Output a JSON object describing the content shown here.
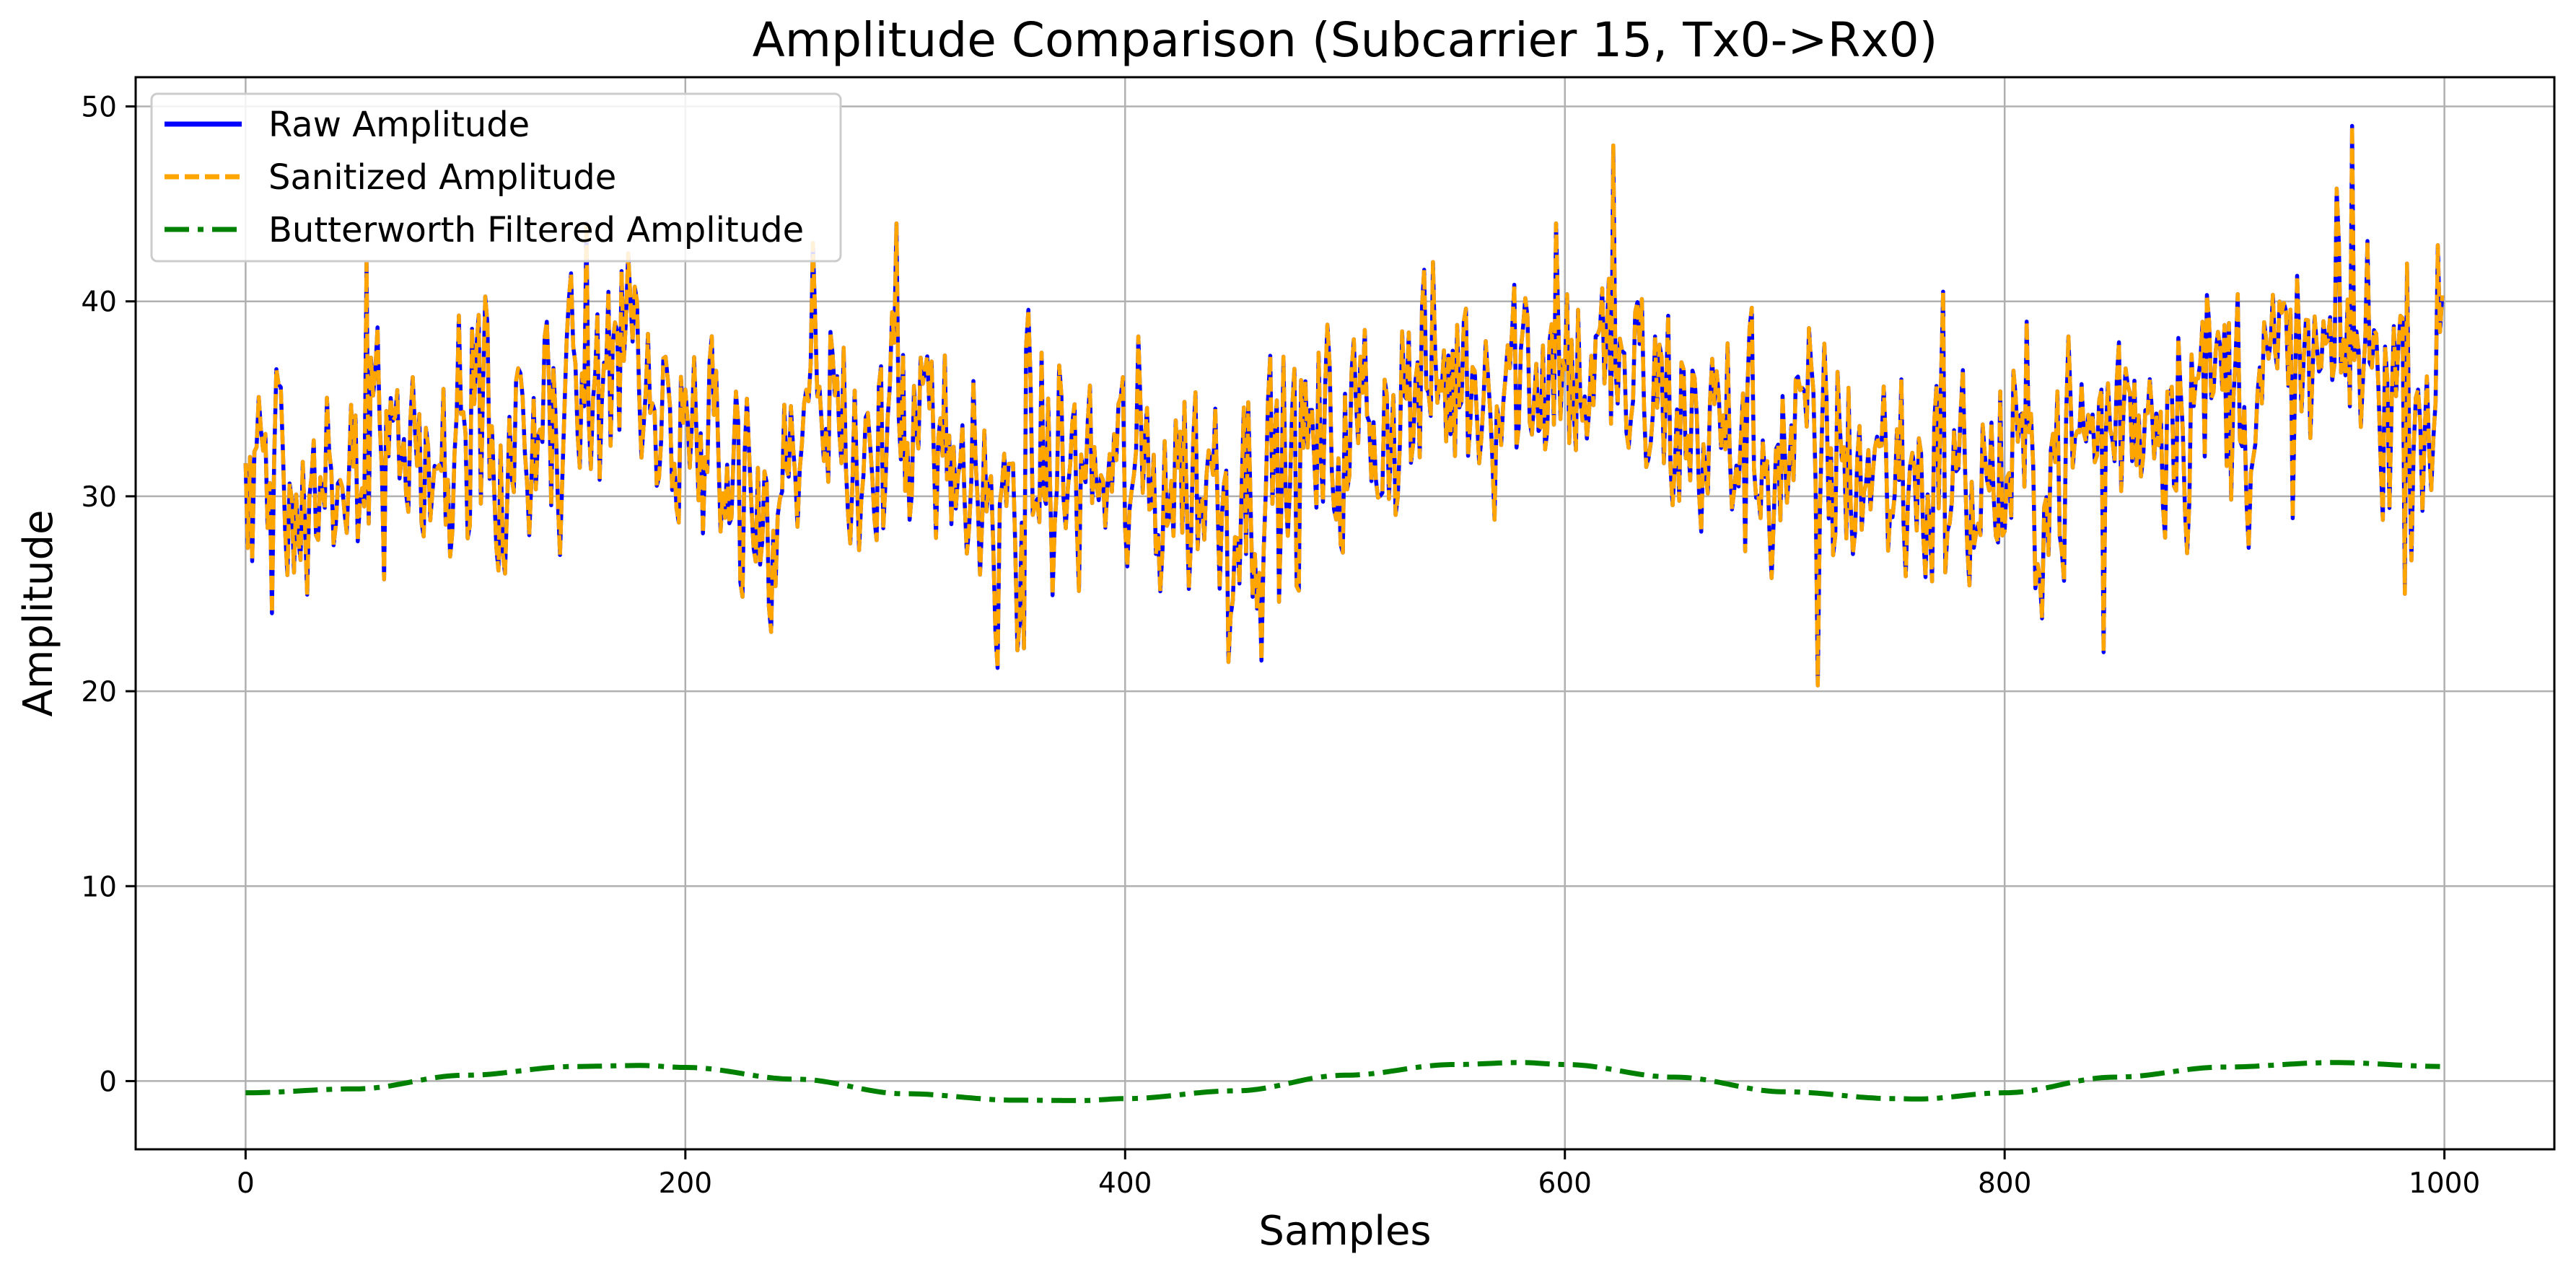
{
  "chart_data": {
    "type": "line",
    "title": "Amplitude Comparison (Subcarrier 15, Tx0->Rx0)",
    "xlabel": "Samples",
    "ylabel": "Amplitude",
    "xlim": [
      -50,
      1050
    ],
    "ylim": [
      -3.5,
      51.5
    ],
    "xticks": [
      0,
      200,
      400,
      600,
      800,
      1000
    ],
    "xtick_labels": [
      "0",
      "200",
      "400",
      "600",
      "800",
      "1000"
    ],
    "yticks": [
      0,
      10,
      20,
      30,
      40,
      50
    ],
    "ytick_labels": [
      "0",
      "10",
      "20",
      "30",
      "40",
      "50"
    ],
    "grid": true,
    "legend_position": "upper-left",
    "n_samples": 1000,
    "series": [
      {
        "name": "Raw Amplitude",
        "color": "#0000ff",
        "style": "solid",
        "description": "noisy signal, mostly 25-45, mean ~33",
        "anchor_x": [
          0,
          20,
          40,
          60,
          80,
          100,
          120,
          140,
          160,
          180,
          200,
          220,
          240,
          260,
          280,
          300,
          320,
          340,
          360,
          380,
          400,
          420,
          440,
          460,
          480,
          500,
          520,
          540,
          560,
          580,
          600,
          620,
          640,
          660,
          680,
          700,
          720,
          740,
          760,
          780,
          800,
          820,
          840,
          860,
          880,
          900,
          920,
          940,
          960,
          980,
          999
        ],
        "anchor_mean": [
          31,
          30.5,
          32,
          32,
          32.5,
          34,
          34,
          33,
          35.5,
          36,
          34.5,
          32,
          31,
          32,
          33.5,
          33,
          30.5,
          29.5,
          31,
          31,
          30.5,
          31,
          31,
          30.5,
          31.5,
          33,
          34.5,
          35.5,
          36.5,
          37,
          37,
          35.5,
          34.5,
          33.5,
          32.5,
          32,
          32,
          31.5,
          31,
          30.5,
          30.5,
          31.5,
          33,
          35,
          35.5,
          35.5,
          35.5,
          36,
          37,
          36,
          35.5
        ],
        "amplitude": 4.8,
        "spikes": [
          [
            155,
            44
          ],
          [
            258,
            43
          ],
          [
            296,
            44
          ],
          [
            596,
            44
          ],
          [
            622,
            48
          ],
          [
            715,
            20.3
          ],
          [
            772,
            40.5
          ],
          [
            845,
            22
          ],
          [
            958,
            49
          ],
          [
            447,
            21.5
          ],
          [
            354,
            22.2
          ],
          [
            12,
            24
          ],
          [
            55,
            42
          ],
          [
            982,
            25
          ]
        ]
      },
      {
        "name": "Sanitized Amplitude",
        "color": "#ffa500",
        "style": "dashed",
        "description": "identical to Raw Amplitude"
      },
      {
        "name": "Butterworth Filtered Amplitude",
        "color": "#008000",
        "style": "dashdot",
        "x": [
          0,
          50,
          100,
          150,
          180,
          200,
          250,
          300,
          350,
          380,
          400,
          450,
          500,
          550,
          580,
          600,
          650,
          700,
          750,
          760,
          800,
          850,
          900,
          950,
          999
        ],
        "y": [
          -0.6,
          -0.4,
          0.3,
          0.75,
          0.8,
          0.7,
          0.1,
          -0.65,
          -0.98,
          -1.0,
          -0.9,
          -0.5,
          0.3,
          0.85,
          0.95,
          0.85,
          0.2,
          -0.55,
          -0.9,
          -0.92,
          -0.6,
          0.2,
          0.72,
          0.95,
          0.75
        ]
      }
    ]
  }
}
